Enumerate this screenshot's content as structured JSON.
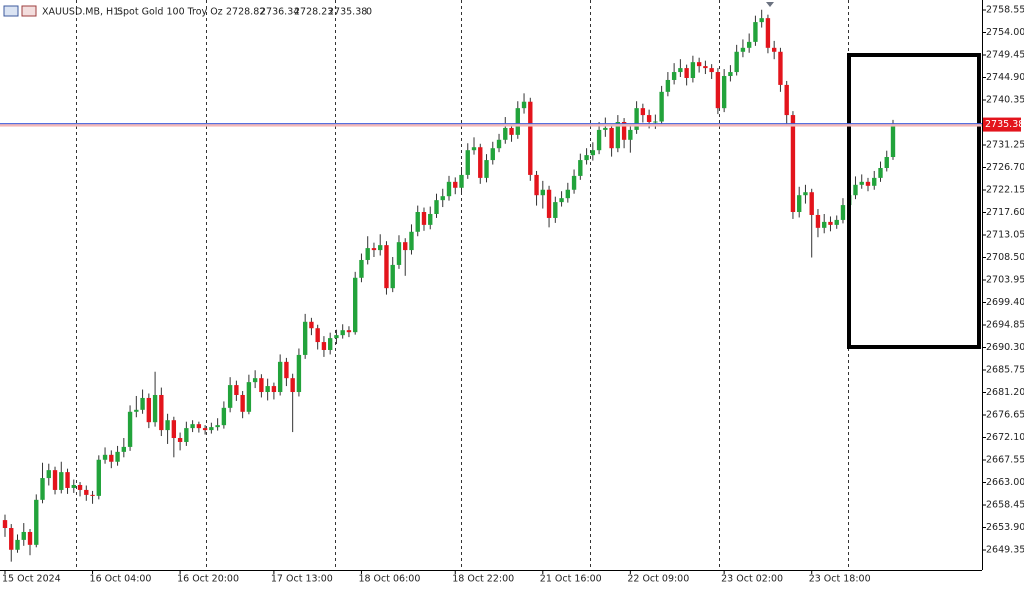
{
  "chart_data": {
    "type": "candlestick",
    "symbol": "XAUUSD.MB, H1:",
    "description": "Spot Gold 100 Troy Oz",
    "info_value": 0,
    "up_color": "#22a33b",
    "down_color": "#e3141c",
    "wick_color": "#333333",
    "price_line_color": "#3b5bdb",
    "price_label_color": "#e3141c",
    "ylim": [
      2645.31,
      2760.57
    ],
    "yticks": [
      2758.55,
      {
        "value": 2754,
        "label": "2754.00"
      },
      2749.45,
      {
        "value": 2744.9,
        "label": "2744.90"
      },
      2740.35,
      2731.25,
      {
        "value": 2726.7,
        "label": "2726.70"
      },
      2722.15,
      {
        "value": 2717.6,
        "label": "2717.60"
      },
      2713.05,
      {
        "value": 2708.5,
        "label": "2708.50"
      },
      2703.95,
      {
        "value": 2699.4,
        "label": "2699.40"
      },
      2694.85,
      {
        "value": 2690.3,
        "label": "2690.30"
      },
      2685.75,
      {
        "value": 2681.2,
        "label": "2681.20"
      },
      2676.65,
      {
        "value": 2672.1,
        "label": "2672.10"
      },
      2667.55,
      {
        "value": 2663,
        "label": "2663.00"
      },
      2658.45,
      {
        "value": 2653.9,
        "label": "2653.90"
      },
      2649.35
    ],
    "categories": [
      "15 Oct 2024",
      null,
      null,
      null,
      null,
      null,
      null,
      null,
      null,
      null,
      null,
      null,
      null,
      null,
      "16 Oct 04:00",
      null,
      null,
      null,
      null,
      null,
      null,
      null,
      null,
      null,
      null,
      null,
      null,
      null,
      "16 Oct 20:00",
      null,
      null,
      null,
      null,
      null,
      null,
      null,
      null,
      null,
      null,
      null,
      null,
      null,
      null,
      "17 Oct 13:00",
      null,
      null,
      null,
      null,
      null,
      null,
      null,
      null,
      null,
      null,
      null,
      null,
      null,
      "18 Oct 06:00",
      null,
      null,
      null,
      null,
      null,
      null,
      null,
      null,
      null,
      null,
      null,
      null,
      null,
      null,
      "18 Oct 22:00",
      null,
      null,
      null,
      null,
      null,
      null,
      null,
      null,
      null,
      null,
      null,
      null,
      null,
      "21 Oct 16:00",
      null,
      null,
      null,
      null,
      null,
      null,
      null,
      null,
      null,
      null,
      null,
      null,
      null,
      "22 Oct 09:00",
      null,
      null,
      null,
      null,
      null,
      null,
      null,
      null,
      null,
      null,
      null,
      null,
      null,
      null,
      "23 Oct 02:00",
      null,
      null,
      null,
      null,
      null,
      null,
      null,
      null,
      null,
      null,
      null,
      null,
      null,
      "23 Oct 18:00",
      null,
      null,
      null,
      null,
      null,
      null,
      null,
      null,
      null,
      null,
      null,
      null,
      null
    ],
    "open": [
      2655.4,
      2653.8,
      2649.4,
      2651.4,
      2653.0,
      2650.4,
      2659.5,
      2663.9,
      2665.5,
      2661.5,
      2665.1,
      2661.9,
      2662.5,
      2661.5,
      2660.5,
      2660.3,
      2667.6,
      2668.6,
      2667.2,
      2669.2,
      2670.2,
      2677.3,
      2677.7,
      2680.1,
      2675.2,
      2680.7,
      2673.6,
      2675.6,
      2672.0,
      2671.2,
      2674.0,
      2674.8,
      2674.0,
      2673.6,
      2674.2,
      2674.6,
      2678.1,
      2682.7,
      2680.7,
      2677.3,
      2683.3,
      2684.1,
      2681.3,
      2682.5,
      2681.3,
      2687.4,
      2684.1,
      2681.3,
      2688.8,
      2695.5,
      2694.2,
      2691.4,
      2689.8,
      2692.2,
      2692.8,
      2693.8,
      2693.4,
      2704.4,
      2708.0,
      2710.4,
      2710.0,
      2711.0,
      2702.3,
      2707.0,
      2711.6,
      2710.0,
      2713.7,
      2717.7,
      2715.1,
      2717.3,
      2720.1,
      2720.9,
      2723.8,
      2722.6,
      2725.2,
      2730.2,
      2730.8,
      2724.6,
      2728.2,
      2730.6,
      2732.3,
      2734.7,
      2733.3,
      2738.7,
      2740.0,
      2725.2,
      2721.1,
      2722.2,
      2716.5,
      2719.7,
      2720.5,
      2722.2,
      2725.0,
      2728.2,
      2729.2,
      2730.2,
      2734.3,
      2734.7,
      2730.6,
      2735.9,
      2732.3,
      2734.3,
      2738.7,
      2737.3,
      2735.9,
      2736.0,
      2742.0,
      2744.4,
      2746.0,
      2746.8,
      2744.8,
      2748.0,
      2747.2,
      2746.8,
      2746.0,
      2738.7,
      2745.2,
      2746.0,
      2750.1,
      2750.9,
      2752.1,
      2756.1,
      2756.9,
      2750.9,
      2750.1,
      2743.4,
      2737.3,
      2717.7,
      2721.1,
      2721.7,
      2717.1,
      2714.5,
      2715.7,
      2715.1,
      2716.1,
      2719.1,
      2721.1,
      2723.2,
      2723.8,
      2723.0,
      2724.6,
      2726.6,
      2728.82
    ],
    "high": [
      2656.5,
      2654.6,
      2652.5,
      2654.8,
      2653.6,
      2660.6,
      2667.0,
      2666.8,
      2666.2,
      2667.2,
      2665.8,
      2663.6,
      2663.1,
      2662.4,
      2661.3,
      2668.5,
      2670.1,
      2669.5,
      2670.4,
      2672.0,
      2678.6,
      2680.5,
      2681.8,
      2681.0,
      2685.4,
      2682.2,
      2676.9,
      2676.3,
      2673.1,
      2675.3,
      2675.6,
      2675.3,
      2674.6,
      2675.1,
      2676.0,
      2679.4,
      2684.3,
      2683.6,
      2681.5,
      2684.8,
      2685.7,
      2684.9,
      2684.0,
      2683.2,
      2688.9,
      2688.2,
      2685.0,
      2690.1,
      2697.1,
      2696.3,
      2694.9,
      2692.6,
      2693.3,
      2693.9,
      2695.0,
      2694.6,
      2705.6,
      2709.3,
      2712.8,
      2711.5,
      2713.2,
      2711.8,
      2708.6,
      2713.0,
      2712.4,
      2715.2,
      2719.0,
      2718.6,
      2718.8,
      2721.4,
      2722.4,
      2725.0,
      2724.7,
      2726.8,
      2731.6,
      2732.8,
      2731.5,
      2729.4,
      2731.9,
      2733.5,
      2736.9,
      2735.6,
      2740.1,
      2741.7,
      2740.8,
      2726.0,
      2724.0,
      2723.0,
      2720.8,
      2721.9,
      2723.6,
      2726.3,
      2729.5,
      2730.6,
      2731.8,
      2735.9,
      2736.8,
      2735.5,
      2737.3,
      2736.7,
      2735.6,
      2740.1,
      2739.6,
      2738.4,
      2737.4,
      2743.2,
      2746.0,
      2747.8,
      2748.6,
      2747.5,
      2749.3,
      2748.9,
      2748.3,
      2747.6,
      2746.8,
      2746.6,
      2747.4,
      2751.5,
      2752.6,
      2753.8,
      2757.4,
      2758.6,
      2757.6,
      2752.3,
      2750.9,
      2744.2,
      2738.1,
      2722.8,
      2723.2,
      2722.4,
      2718.3,
      2717.3,
      2716.8,
      2717.0,
      2720.5,
      2722.4,
      2724.9,
      2725.3,
      2724.6,
      2726.0,
      2727.9,
      2730.1,
      2736.34
    ],
    "low": [
      2652.0,
      2647.0,
      2648.8,
      2650.2,
      2648.3,
      2649.9,
      2658.8,
      2662.4,
      2660.6,
      2660.8,
      2660.7,
      2660.9,
      2660.2,
      2659.3,
      2658.7,
      2659.6,
      2666.8,
      2665.9,
      2666.4,
      2668.1,
      2669.4,
      2676.2,
      2676.9,
      2674.0,
      2674.3,
      2672.4,
      2670.8,
      2668.1,
      2669.5,
      2670.4,
      2673.2,
      2673.1,
      2672.7,
      2672.9,
      2673.5,
      2673.9,
      2677.2,
      2679.5,
      2676.0,
      2676.8,
      2682.1,
      2680.2,
      2679.6,
      2679.8,
      2680.6,
      2682.5,
      2673.2,
      2680.4,
      2688.0,
      2692.8,
      2689.9,
      2688.4,
      2688.9,
      2691.0,
      2692.1,
      2692.4,
      2692.9,
      2703.5,
      2707.1,
      2708.6,
      2708.9,
      2701.0,
      2701.5,
      2706.2,
      2704.8,
      2709.1,
      2712.8,
      2713.9,
      2714.2,
      2716.5,
      2718.7,
      2720.0,
      2721.3,
      2721.7,
      2724.4,
      2729.3,
      2723.4,
      2723.7,
      2727.3,
      2729.8,
      2731.5,
      2731.9,
      2732.5,
      2737.6,
      2724.0,
      2719.0,
      2718.4,
      2714.6,
      2715.5,
      2718.8,
      2719.6,
      2721.4,
      2724.2,
      2727.3,
      2728.1,
      2729.4,
      2732.9,
      2728.9,
      2729.8,
      2730.6,
      2729.7,
      2733.5,
      2735.8,
      2734.6,
      2734.5,
      2735.2,
      2741.1,
      2743.5,
      2745.0,
      2743.3,
      2743.9,
      2745.9,
      2745.6,
      2744.6,
      2737.5,
      2737.9,
      2744.1,
      2745.3,
      2749.0,
      2749.9,
      2751.3,
      2755.0,
      2749.8,
      2748.6,
      2742.0,
      2735.6,
      2716.3,
      2716.6,
      2719.4,
      2708.5,
      2712.6,
      2713.4,
      2713.8,
      2714.3,
      2715.4,
      2718.2,
      2720.3,
      2722.4,
      2721.9,
      2722.2,
      2723.8,
      2725.9,
      2728.23
    ],
    "close": [
      2653.8,
      2649.4,
      2651.4,
      2653.0,
      2650.4,
      2659.5,
      2663.9,
      2665.5,
      2661.5,
      2665.1,
      2661.9,
      2662.5,
      2661.5,
      2660.5,
      2660.3,
      2667.6,
      2668.6,
      2667.2,
      2669.2,
      2670.2,
      2677.3,
      2677.7,
      2680.1,
      2675.2,
      2680.7,
      2673.6,
      2675.6,
      2672.0,
      2671.2,
      2674.0,
      2674.8,
      2674.0,
      2673.6,
      2674.2,
      2674.6,
      2678.1,
      2682.7,
      2680.7,
      2677.3,
      2683.3,
      2684.1,
      2681.3,
      2682.5,
      2681.3,
      2687.4,
      2684.1,
      2681.3,
      2688.8,
      2695.5,
      2694.2,
      2691.4,
      2689.8,
      2692.2,
      2692.8,
      2693.8,
      2693.4,
      2704.4,
      2708.0,
      2710.4,
      2710.0,
      2711.0,
      2702.3,
      2707.0,
      2711.6,
      2710.0,
      2713.7,
      2717.7,
      2715.1,
      2717.3,
      2720.1,
      2720.9,
      2723.8,
      2722.6,
      2725.2,
      2730.2,
      2730.8,
      2724.6,
      2728.2,
      2730.6,
      2732.3,
      2734.7,
      2733.3,
      2738.7,
      2740.0,
      2725.2,
      2721.1,
      2722.2,
      2716.5,
      2719.7,
      2720.5,
      2722.2,
      2725.0,
      2728.2,
      2729.2,
      2730.2,
      2734.3,
      2734.7,
      2730.6,
      2735.9,
      2732.3,
      2734.3,
      2738.7,
      2737.3,
      2735.9,
      2736.0,
      2742.0,
      2744.4,
      2746.0,
      2746.8,
      2744.8,
      2748.0,
      2747.2,
      2746.8,
      2746.0,
      2738.7,
      2745.2,
      2746.0,
      2750.1,
      2750.9,
      2752.1,
      2756.1,
      2756.9,
      2750.9,
      2750.1,
      2743.4,
      2737.3,
      2717.7,
      2721.1,
      2721.7,
      2717.1,
      2714.5,
      2715.7,
      2715.1,
      2716.1,
      2719.1,
      2721.1,
      2723.2,
      2723.8,
      2723.0,
      2724.6,
      2726.6,
      2728.82,
      2735.38
    ]
  }
}
